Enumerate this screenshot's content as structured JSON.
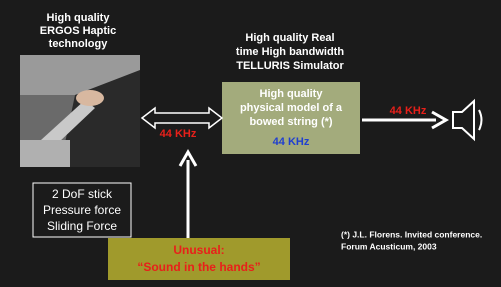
{
  "left_title": [
    "High quality",
    "ERGOS Haptic",
    "technology"
  ],
  "center_title": [
    "High quality Real",
    "time High bandwidth",
    "TELLURIS Simulator"
  ],
  "model_box": {
    "lines": [
      "High quality",
      "physical model of a",
      "bowed string (*)"
    ],
    "rate": "44 KHz"
  },
  "left_arrow_label": "44 KHz",
  "right_arrow_label": "44 KHz",
  "stick_box": [
    "2 DoF stick",
    "Pressure force",
    "Sliding Force"
  ],
  "unusual_box": [
    "Unusual:",
    "“Sound in the hands”"
  ],
  "footnote": [
    "(*) J.L. Florens. Invited conference.",
    "Forum Acusticum, 2003"
  ]
}
